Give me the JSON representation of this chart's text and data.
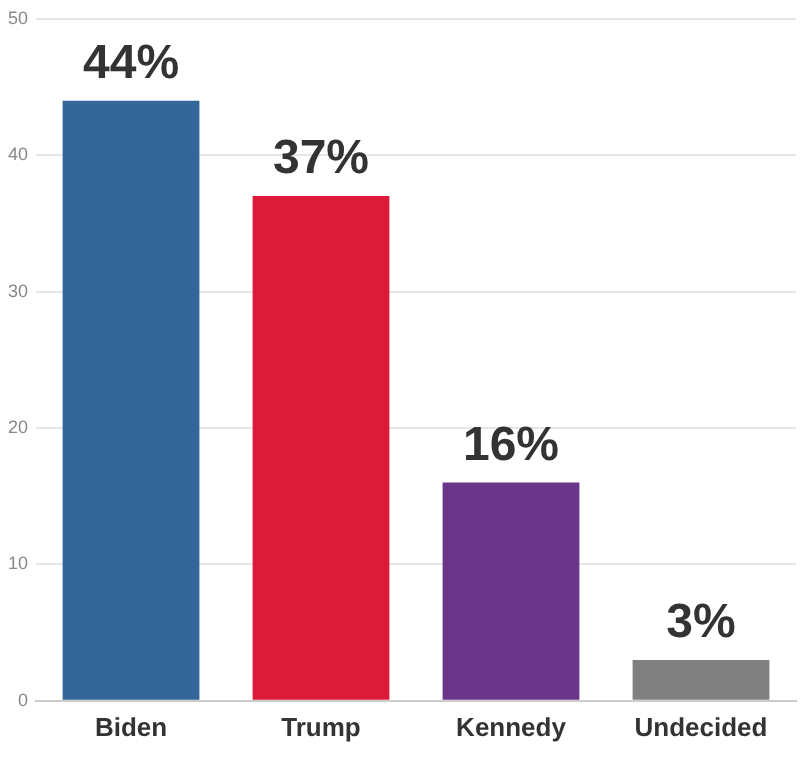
{
  "chart_data": {
    "type": "bar",
    "categories": [
      "Biden",
      "Trump",
      "Kennedy",
      "Undecided"
    ],
    "values": [
      44,
      37,
      16,
      3
    ],
    "colors": [
      "#336699",
      "#dc1a3a",
      "#6b3589",
      "#808080"
    ],
    "value_labels": [
      "44%",
      "37%",
      "16%",
      "3%"
    ],
    "ylim": [
      0,
      50
    ],
    "yticks": [
      0,
      10,
      20,
      30,
      40,
      50
    ],
    "grid": "y",
    "legend": false
  }
}
